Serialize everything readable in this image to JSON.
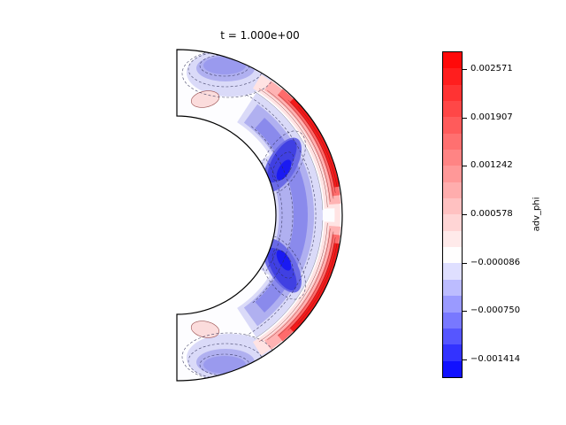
{
  "figure": {
    "background": "#ffffff"
  },
  "chart_data": {
    "type": "heatmap",
    "subtype": "filled-contour meridional slice (half annulus)",
    "title": "t = 1.000e+00",
    "field_name": "adv_phi",
    "domain": {
      "shape": "half annulus opening left (spherical shell meridional cut)",
      "colatitude_range_deg": [
        0,
        180
      ],
      "inner_to_outer_radius_ratio": 0.6
    },
    "symmetry": "pattern is mirror-symmetric about the equator",
    "contour_line_style": {
      "negative_levels": "dashed",
      "positive_levels": "solid"
    },
    "colorbar": {
      "label": "adv_phi",
      "orientation": "vertical",
      "tick_labels": [
        "0.002571",
        "0.001907",
        "0.001242",
        "0.000578",
        "−0.000086",
        "−0.000750",
        "−0.001414"
      ],
      "tick_values": [
        0.002571,
        0.001907,
        0.001242,
        0.000578,
        -8.6e-05,
        -0.00075,
        -0.001414
      ],
      "vmax_estimate": 0.002814,
      "vmin_estimate": -0.001669,
      "n_levels": 20,
      "level_step_estimate": 0.000221,
      "cmap": {
        "name": "blue-white-red diverging",
        "max_color": "#ff0000",
        "center_color": "#ffffff",
        "min_color": "#0000ff",
        "center_value": 0
      }
    },
    "features": [
      {
        "name": "positive-band-outer-boundary-north",
        "sign": "positive",
        "peak_estimate": 0.0028,
        "location": "hugging outer boundary, colatitude ~35–85°"
      },
      {
        "name": "positive-band-outer-boundary-south",
        "sign": "positive",
        "peak_estimate": 0.0028,
        "location": "hugging outer boundary, colatitude ~95–145°"
      },
      {
        "name": "negative-band-mid-depth",
        "sign": "negative",
        "min_estimate": -0.00167,
        "location": "mid-depth band from north cut to south cut, strongest near ±25° latitude, touching inner boundary at equator"
      },
      {
        "name": "negative-cap-north",
        "sign": "negative",
        "min_estimate": -0.0009,
        "location": "near north polar cut at outer radii"
      },
      {
        "name": "negative-cap-south",
        "sign": "negative",
        "min_estimate": -0.0009,
        "location": "near south polar cut at outer radii"
      },
      {
        "name": "weak-positive-spot-north",
        "sign": "positive",
        "peak_estimate": 0.0003,
        "location": "small ellipse near inner boundary, north polar region"
      },
      {
        "name": "weak-positive-spot-south",
        "sign": "positive",
        "peak_estimate": 0.0003,
        "location": "small ellipse near inner boundary, south polar region"
      },
      {
        "name": "near-zero-gap",
        "sign": "zero",
        "location": "white gap between negative interior band and positive outer band; also at equator near outer boundary"
      }
    ]
  }
}
